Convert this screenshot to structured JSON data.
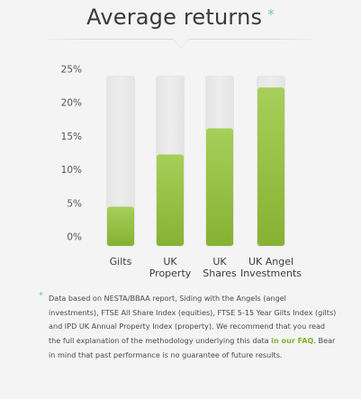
{
  "header": {
    "title": "Average returns",
    "asterisk": "*"
  },
  "colors": {
    "bar_fill_top": "#a6cf59",
    "bar_fill_bottom": "#86b233",
    "track": "#e9e9e9",
    "accent_teal": "#6fc6c6",
    "link": "#87b12f"
  },
  "chart_data": {
    "type": "bar",
    "categories": [
      "Gilts",
      "UK Property",
      "UK Shares",
      "UK Angel Investments"
    ],
    "category_lines": [
      [
        "Gilts"
      ],
      [
        "UK",
        "Property"
      ],
      [
        "UK",
        "Shares"
      ],
      [
        "UK Angel",
        "Investments"
      ]
    ],
    "values": [
      4.5,
      12.3,
      16.2,
      22.3
    ],
    "ylim": [
      0,
      25
    ],
    "yticks": [
      "0%",
      "5%",
      "10%",
      "15%",
      "20%",
      "25%"
    ],
    "ytick_values": [
      0,
      5,
      10,
      15,
      20,
      25
    ],
    "grid": false
  },
  "footnote": {
    "asterisk": "*",
    "text_before": "Data based on NESTA/BBAA report, Siding with the Angels (angel investments), FTSE All Share Index (equities), FTSE 5-15 Year Gilts Index (gilts) and IPD UK Annual Property Index (property). We recommend that you read the full explanation of the methodology underlying this data ",
    "link_text": "in our FAQ",
    "text_after": ". Bear in mind that past performance is no guarantee of future results."
  }
}
